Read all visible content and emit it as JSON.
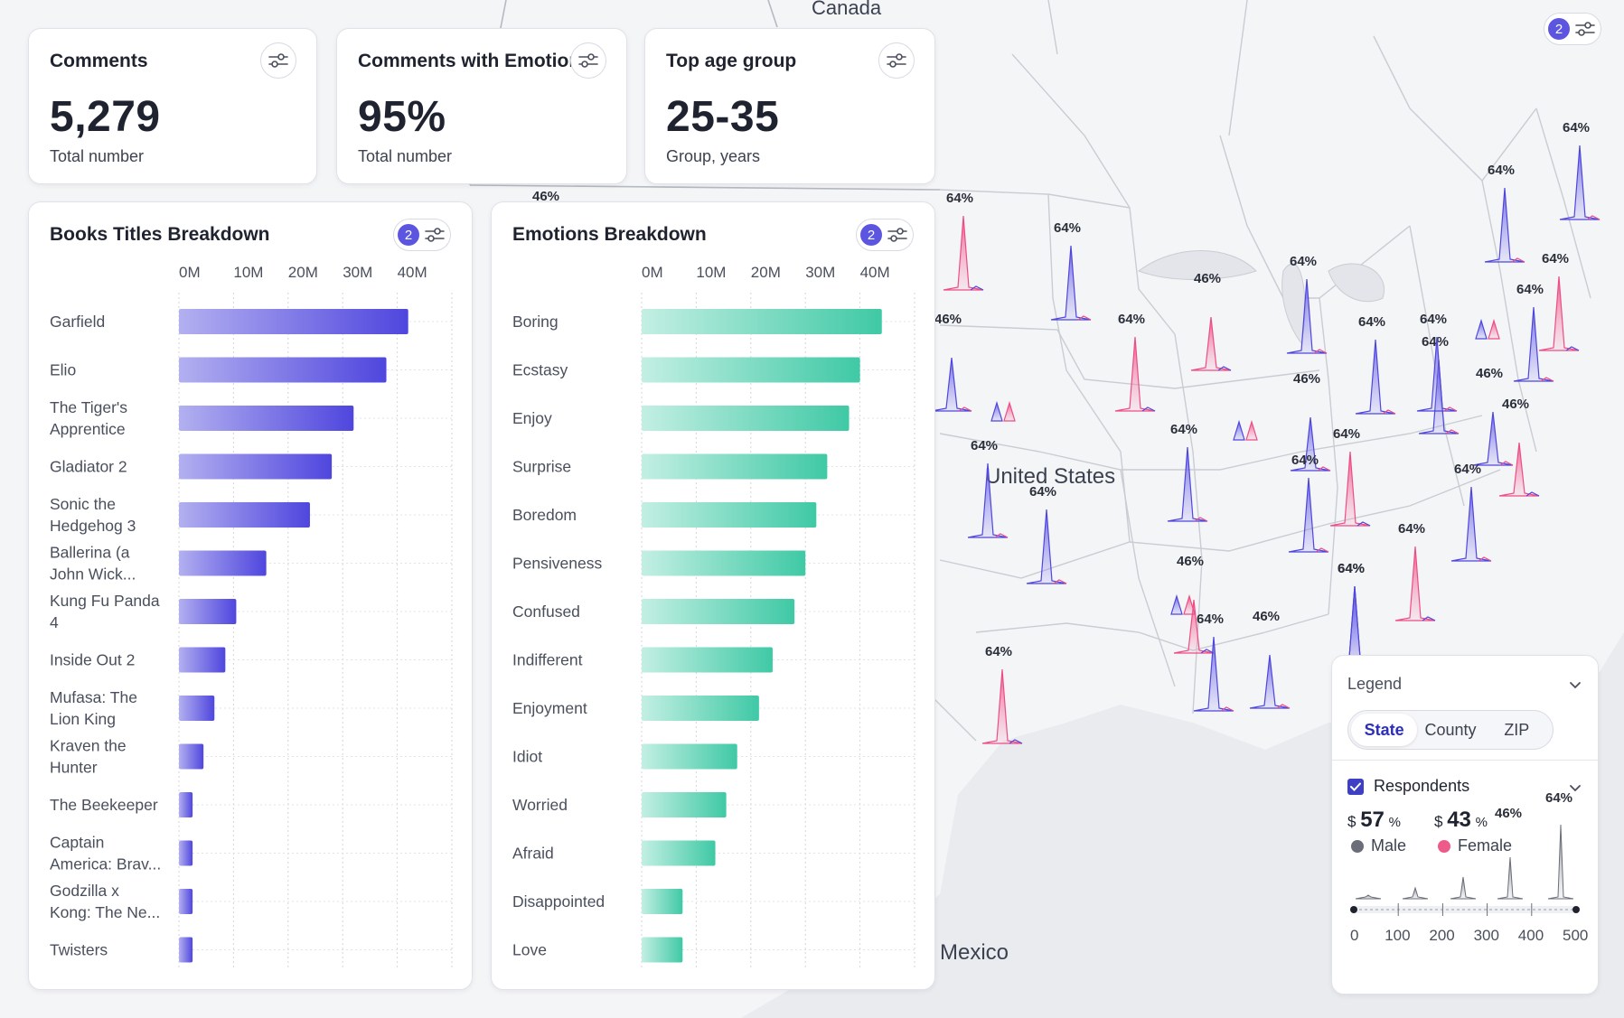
{
  "kpis": [
    {
      "title": "Comments",
      "value": "5,279",
      "subtitle": "Total number"
    },
    {
      "title": "Comments with Emotion",
      "value": "95%",
      "subtitle": "Total number"
    },
    {
      "title": "Top age group",
      "value": "25-35",
      "subtitle": "Group, years"
    }
  ],
  "map": {
    "labels": {
      "country_north": "Canada",
      "country_main": "United States",
      "country_south": "Mexico"
    },
    "filter_badge": "2",
    "spikes": [
      {
        "label": "46%",
        "value": 46,
        "color": "blue"
      },
      {
        "label": "64%",
        "value": 64,
        "color": "pink"
      },
      {
        "label": "64%",
        "value": 64,
        "color": "blue"
      },
      {
        "label": "46%",
        "value": 46,
        "color": "blue"
      },
      {
        "label": "64%",
        "value": 64,
        "color": "pink"
      },
      {
        "label": "46%",
        "value": 46,
        "color": "pink"
      },
      {
        "label": "64%",
        "value": 64,
        "color": "blue"
      },
      {
        "label": "64%",
        "value": 64,
        "color": "blue"
      },
      {
        "label": "64%",
        "value": 64,
        "color": "blue"
      },
      {
        "label": "64%",
        "value": 64,
        "color": "blue"
      },
      {
        "label": "64%",
        "value": 64,
        "color": "blue"
      },
      {
        "label": "64%",
        "value": 64,
        "color": "pink"
      },
      {
        "label": "64%",
        "value": 64,
        "color": "blue"
      },
      {
        "label": "46%",
        "value": 46,
        "color": "blue"
      },
      {
        "label": "64%",
        "value": 64,
        "color": "blue"
      },
      {
        "label": "46%",
        "value": 46,
        "color": "blue"
      },
      {
        "label": "64%",
        "value": 64,
        "color": "pink"
      },
      {
        "label": "64%",
        "value": 64,
        "color": "blue"
      },
      {
        "label": "64%",
        "value": 64,
        "color": "blue"
      },
      {
        "label": "64%",
        "value": 64,
        "color": "blue"
      },
      {
        "label": "64%",
        "value": 64,
        "color": "blue"
      },
      {
        "label": "64%",
        "value": 64,
        "color": "blue"
      },
      {
        "label": "64%",
        "value": 64,
        "color": "pink"
      },
      {
        "label": "64%",
        "value": 64,
        "color": "blue"
      },
      {
        "label": "46%",
        "value": 46,
        "color": "pink"
      },
      {
        "label": "64%",
        "value": 64,
        "color": "blue"
      },
      {
        "label": "46%",
        "value": 46,
        "color": "blue"
      },
      {
        "label": "64%",
        "value": 64,
        "color": "blue"
      },
      {
        "label": "64%",
        "value": 64,
        "color": "pink"
      },
      {
        "label": "46%",
        "value": 46,
        "color": "pink"
      }
    ]
  },
  "books": {
    "title": "Books Titles Breakdown",
    "filter_badge": "2",
    "ticks": [
      "0M",
      "10M",
      "20M",
      "30M",
      "40M"
    ],
    "categories": [
      [
        "Garfield"
      ],
      [
        "Elio"
      ],
      [
        "The Tiger's",
        "Apprentice"
      ],
      [
        "Gladiator 2"
      ],
      [
        "Sonic the",
        "Hedgehog 3"
      ],
      [
        "Ballerina (a",
        "John Wick..."
      ],
      [
        "Kung Fu Panda",
        "4"
      ],
      [
        "Inside Out 2"
      ],
      [
        "Mufasa: The",
        "Lion King"
      ],
      [
        "Kraven the",
        "Hunter"
      ],
      [
        "The Beekeeper"
      ],
      [
        "Captain",
        "America: Brav..."
      ],
      [
        "Godzilla x",
        "Kong: The Ne..."
      ],
      [
        "Twisters"
      ]
    ]
  },
  "emotions": {
    "title": "Emotions Breakdown",
    "filter_badge": "2",
    "ticks": [
      "0M",
      "10M",
      "20M",
      "30M",
      "40M"
    ],
    "categories": [
      "Boring",
      "Ecstasy",
      "Enjoy",
      "Surprise",
      "Boredom",
      "Pensiveness",
      "Confused",
      "Indifferent",
      "Enjoyment",
      "Idiot",
      "Worried",
      "Afraid",
      "Disappointed",
      "Love"
    ]
  },
  "chart_data": [
    {
      "type": "bar",
      "title": "Books Titles Breakdown",
      "orientation": "horizontal",
      "categories": [
        "Garfield",
        "Elio",
        "The Tiger's Apprentice",
        "Gladiator 2",
        "Sonic the Hedgehog 3",
        "Ballerina (a John Wick...",
        "Kung Fu Panda 4",
        "Inside Out 2",
        "Mufasa: The Lion King",
        "Kraven the Hunter",
        "The Beekeeper",
        "Captain America: Brav...",
        "Godzilla x Kong: The Ne...",
        "Twisters"
      ],
      "values": [
        42,
        38,
        32,
        28,
        24,
        16,
        10.5,
        8.5,
        6.5,
        4.5,
        2.5,
        2.5,
        2.5,
        2.5
      ],
      "xlim": [
        0,
        50
      ],
      "xlabel": "",
      "ylabel": "",
      "colors": [
        "#b3b0f0",
        "#4f46de"
      ]
    },
    {
      "type": "bar",
      "title": "Emotions Breakdown",
      "orientation": "horizontal",
      "categories": [
        "Boring",
        "Ecstasy",
        "Enjoy",
        "Surprise",
        "Boredom",
        "Pensiveness",
        "Confused",
        "Indifferent",
        "Enjoyment",
        "Idiot",
        "Worried",
        "Afraid",
        "Disappointed",
        "Love"
      ],
      "values": [
        44,
        40,
        38,
        34,
        32,
        30,
        28,
        24,
        21.5,
        17.5,
        15.5,
        13.5,
        7.5,
        7.5
      ],
      "xlim": [
        0,
        50
      ],
      "xlabel": "",
      "ylabel": "",
      "colors": [
        "#b6ecdf",
        "#3fc9a5"
      ]
    }
  ],
  "legend": {
    "title": "Legend",
    "tabs": [
      {
        "label": "State",
        "active": true
      },
      {
        "label": "County",
        "active": false
      },
      {
        "label": "ZIP",
        "active": false
      }
    ],
    "respondents_label": "Respondents",
    "male": {
      "currency": "$",
      "value": "57",
      "unit": "%",
      "label": "Male",
      "color": "#6b6e78"
    },
    "female": {
      "currency": "$",
      "value": "43",
      "unit": "%",
      "label": "Female",
      "color": "#ee5b8b"
    },
    "axis": [
      "0",
      "100",
      "200",
      "300",
      "400",
      "500"
    ],
    "range": [
      0,
      500
    ],
    "peaks": [
      {
        "label": "46%",
        "value": 46
      },
      {
        "label": "64%",
        "value": 64
      }
    ]
  },
  "colors": {
    "accent": "#5b55e0",
    "blue": "#4f46de",
    "pink": "#ee4d84",
    "teal": "#3fc9a5"
  }
}
